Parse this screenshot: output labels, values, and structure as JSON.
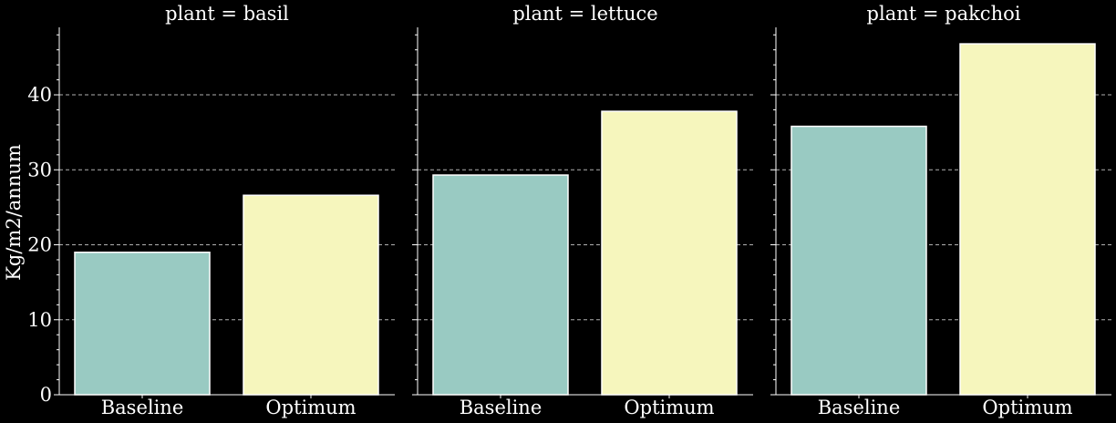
{
  "chart_data": {
    "type": "bar",
    "ylabel": "Kg/m2/annum",
    "ylim": [
      0,
      49
    ],
    "yticks": [
      0,
      10,
      20,
      30,
      40
    ],
    "grid": "horizontal-dashed",
    "background": "#000000",
    "colors": {
      "Baseline": "#99cac2",
      "Optimum": "#f6f6bd",
      "bar_edge": "#ffffff",
      "grid": "#b0b0b0"
    },
    "categories": [
      "Baseline",
      "Optimum"
    ],
    "panels": [
      {
        "title": "plant = basil",
        "values": [
          19.0,
          26.6
        ]
      },
      {
        "title": "plant = lettuce",
        "values": [
          29.3,
          37.8
        ]
      },
      {
        "title": "plant = pakchoi",
        "values": [
          35.8,
          46.8
        ]
      }
    ]
  }
}
